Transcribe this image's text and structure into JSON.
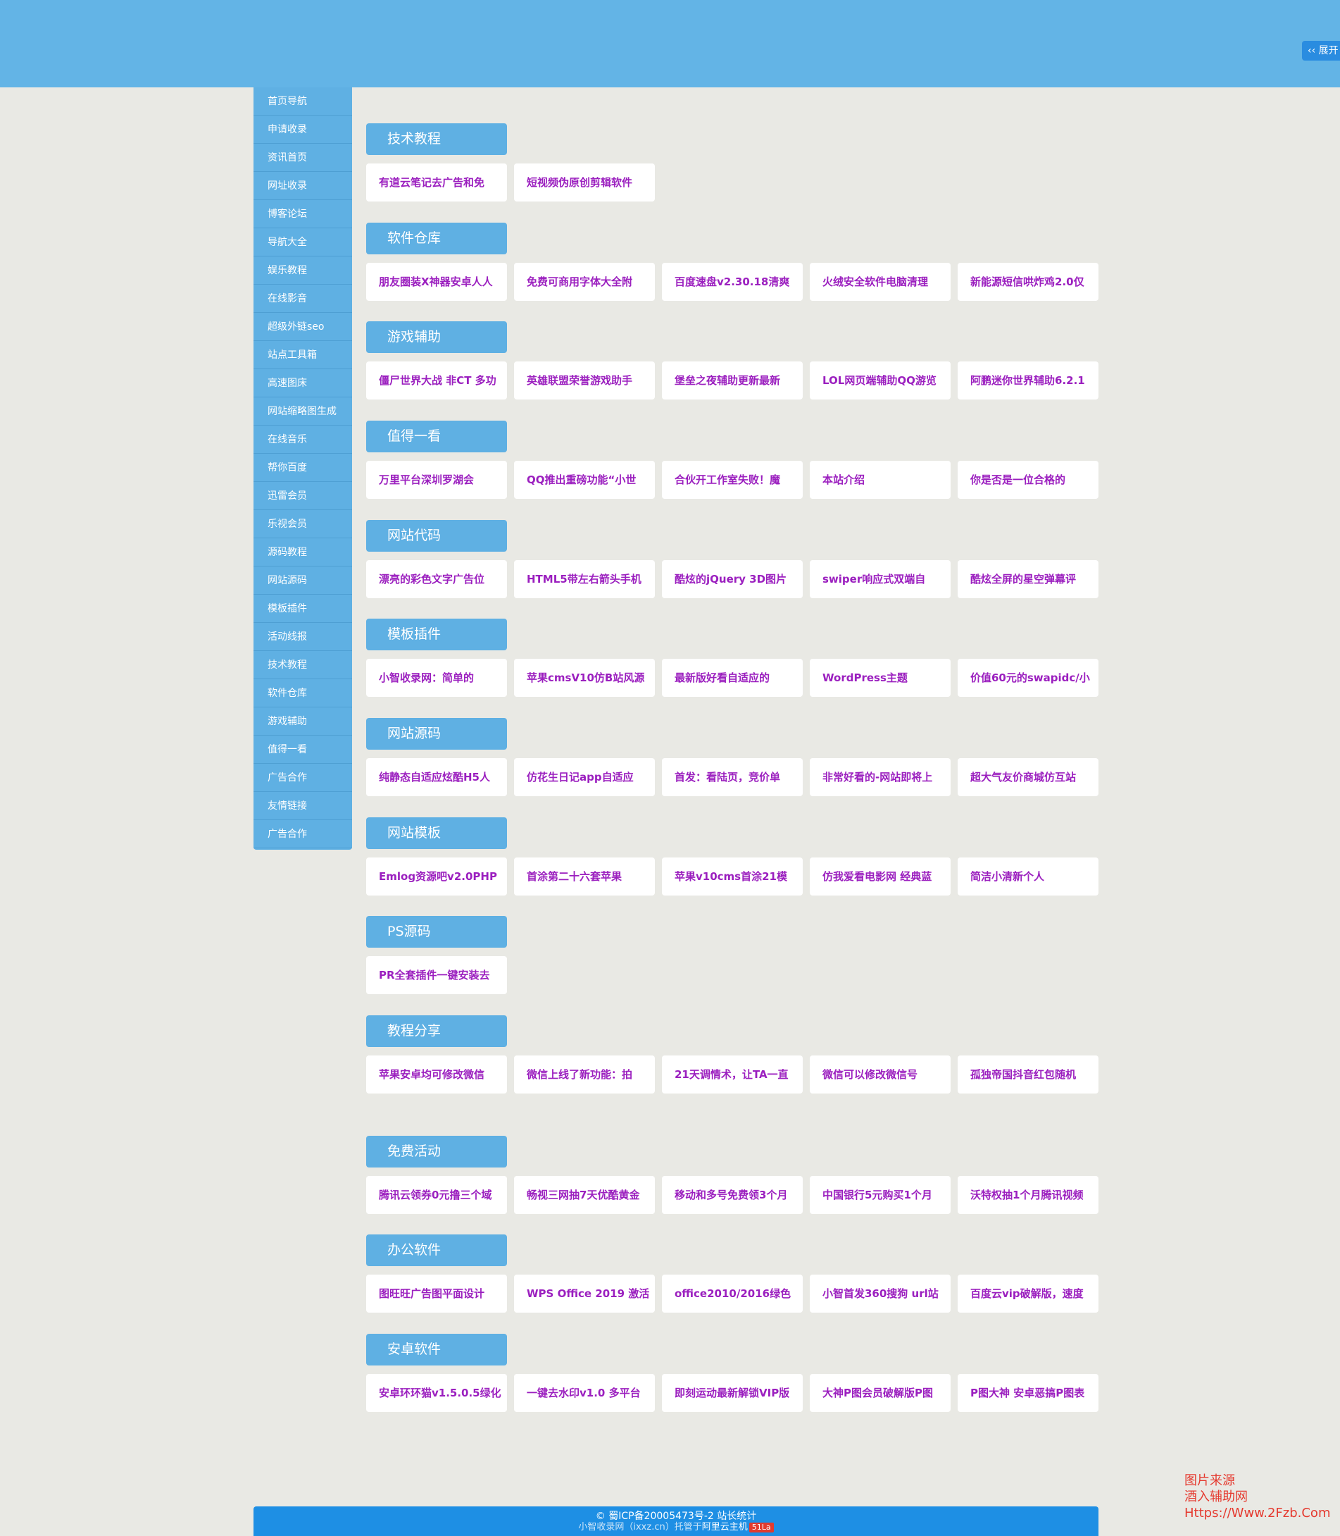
{
  "header": {
    "expand_label": "‹‹ 展开 ‹"
  },
  "sidebar": {
    "items": [
      "首页导航",
      "申请收录",
      "资讯首页",
      "网址收录",
      "博客论坛",
      "导航大全",
      "娱乐教程",
      "在线影音",
      "超级外链seo",
      "站点工具箱",
      "高速图床",
      "网站缩略图生成",
      "在线音乐",
      "帮你百度",
      "迅雷会员",
      "乐视会员",
      "源码教程",
      "网站源码",
      "模板插件",
      "活动线报",
      "技术教程",
      "软件仓库",
      "游戏辅助",
      "值得一看",
      "广告合作",
      "友情链接",
      "广告合作"
    ]
  },
  "sections": [
    {
      "title": "技术教程",
      "links": [
        "有道云笔记去广告和免",
        "短视频伪原创剪辑软件"
      ]
    },
    {
      "title": "软件仓库",
      "links": [
        "朋友圈装X神器安卓人人",
        "免费可商用字体大全附",
        "百度速盘v2.30.18清爽",
        "火绒安全软件电脑清理",
        "新能源短信哄炸鸡2.0仅"
      ]
    },
    {
      "title": "游戏辅助",
      "links": [
        "僵尸世界大战 非CT 多功",
        "英雄联盟荣誉游戏助手",
        "堡垒之夜辅助更新最新",
        "LOL网页端辅助QQ游览",
        "阿鹏迷你世界辅助6.2.1"
      ]
    },
    {
      "title": "值得一看",
      "links": [
        "万里平台深圳罗湖会",
        "QQ推出重磅功能“小世",
        "合伙开工作室失败！魔",
        "本站介绍",
        "你是否是一位合格的"
      ]
    },
    {
      "title": "网站代码",
      "links": [
        "漂亮的彩色文字广告位",
        "HTML5带左右箭头手机",
        "酷炫的jQuery 3D图片",
        "swiper响应式双端自",
        "酷炫全屏的星空弹幕评"
      ]
    },
    {
      "title": "模板插件",
      "links": [
        "小智收录网：简单的",
        "苹果cmsV10仿B站风源",
        "最新版好看自适应的",
        "WordPress主题",
        "价值60元的swapidc/小"
      ]
    },
    {
      "title": "网站源码",
      "links": [
        "纯静态自适应炫酷H5人",
        "仿花生日记app自适应",
        "首发：看陆页，竞价单",
        "非常好看的-网站即将上",
        "超大气友价商城仿互站"
      ]
    },
    {
      "title": "网站模板",
      "links": [
        "Emlog资源吧v2.0PHP",
        "首涂第二十六套苹果",
        "苹果v10cms首涂21模",
        "仿我爱看电影网 经典蓝",
        "简洁小清新个人"
      ]
    },
    {
      "title": "PS源码",
      "links": [
        "PR全套插件一键安装去"
      ]
    },
    {
      "title": "教程分享",
      "links": [
        "苹果安卓均可修改微信",
        "微信上线了新功能：拍",
        "21天调情术，让TA一直",
        "微信可以修改微信号",
        "孤独帝国抖音红包随机"
      ]
    },
    {
      "title": "免费活动",
      "links": [
        "腾讯云领券0元撸三个域",
        "畅视三网抽7天优酷黄金",
        "移动和多号免费领3个月",
        "中国银行5元购买1个月",
        "沃特权抽1个月腾讯视频"
      ]
    },
    {
      "title": "办公软件",
      "links": [
        "图旺旺广告图平面设计",
        "WPS Office 2019 激活",
        "office2010/2016绿色",
        "小智首发360搜狗 url站",
        "百度云vip破解版，速度"
      ]
    },
    {
      "title": "安卓软件",
      "links": [
        "安卓环环猫v1.5.0.5绿化",
        "一键去水印v1.0 多平台",
        "即刻运动最新解锁VIP版",
        "大神P图会员破解版P图",
        "P图大神 安卓恶搞P图表"
      ]
    }
  ],
  "footer": {
    "line1": "© 蜀ICP备20005473号-2 站长统计",
    "line2_prefix": "小智收录网（ixxz.cn）托管于",
    "line2_host": "阿里云主机",
    "badge": "51La"
  },
  "watermark": {
    "line1": "图片来源",
    "line2": "酒入辅助网",
    "line3": "Https://Www.2Fzb.Com"
  },
  "colors": {
    "page_bg": "#e9e9e4",
    "topbar": "#63b4e6",
    "sidebar": "#5fb0e3",
    "link_text": "#9b1fbf",
    "footer": "#1e8fe4",
    "watermark": "#e53a2f"
  }
}
